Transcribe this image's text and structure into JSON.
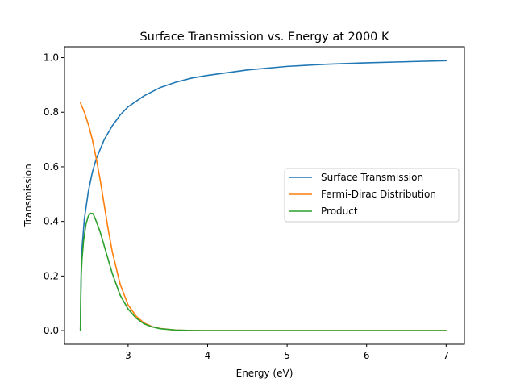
{
  "chart_data": {
    "type": "line",
    "title": "Surface Transmission vs. Energy at 2000 K",
    "xlabel": "Energy (eV)",
    "ylabel": "Transmission",
    "xlim": [
      2.2,
      7.23
    ],
    "ylim": [
      -0.05,
      1.04
    ],
    "xticks": [
      3,
      4,
      5,
      6,
      7
    ],
    "xtick_labels": [
      "3",
      "4",
      "5",
      "6",
      "7"
    ],
    "yticks": [
      0.0,
      0.2,
      0.4,
      0.6,
      0.8,
      1.0
    ],
    "ytick_labels": [
      "0.0",
      "0.2",
      "0.4",
      "0.6",
      "0.8",
      "1.0"
    ],
    "grid": false,
    "legend_position": "center-right",
    "series": [
      {
        "name": "Surface Transmission",
        "color": "#1f77b4",
        "x": [
          2.4,
          2.41,
          2.42,
          2.45,
          2.5,
          2.55,
          2.6,
          2.7,
          2.8,
          2.9,
          3.0,
          3.2,
          3.4,
          3.6,
          3.8,
          4.0,
          4.5,
          5.0,
          5.5,
          6.0,
          6.5,
          7.0
        ],
        "y": [
          0.0,
          0.22,
          0.3,
          0.41,
          0.51,
          0.58,
          0.63,
          0.7,
          0.75,
          0.79,
          0.82,
          0.86,
          0.89,
          0.91,
          0.925,
          0.935,
          0.955,
          0.968,
          0.976,
          0.981,
          0.985,
          0.989
        ]
      },
      {
        "name": "Fermi-Dirac Distribution",
        "color": "#ff7f0e",
        "x": [
          2.4,
          2.45,
          2.5,
          2.55,
          2.6,
          2.65,
          2.7,
          2.75,
          2.8,
          2.9,
          3.0,
          3.1,
          3.2,
          3.3,
          3.4,
          3.6,
          3.8,
          4.0,
          5.0,
          6.0,
          7.0
        ],
        "y": [
          0.835,
          0.8,
          0.755,
          0.7,
          0.63,
          0.55,
          0.46,
          0.37,
          0.29,
          0.17,
          0.094,
          0.053,
          0.028,
          0.015,
          0.008,
          0.002,
          0.0006,
          0.0001,
          0.0,
          0.0,
          0.0
        ]
      },
      {
        "name": "Product",
        "color": "#2ca02c",
        "x": [
          2.4,
          2.405,
          2.41,
          2.42,
          2.44,
          2.47,
          2.5,
          2.53,
          2.56,
          2.6,
          2.65,
          2.7,
          2.75,
          2.8,
          2.9,
          3.0,
          3.1,
          3.2,
          3.3,
          3.4,
          3.6,
          3.8,
          4.0,
          5.0,
          6.0,
          7.0
        ],
        "y": [
          0.0,
          0.14,
          0.2,
          0.26,
          0.33,
          0.39,
          0.42,
          0.43,
          0.428,
          0.4,
          0.36,
          0.31,
          0.26,
          0.21,
          0.13,
          0.079,
          0.046,
          0.025,
          0.014,
          0.007,
          0.002,
          0.0005,
          0.0001,
          0.0,
          0.0,
          0.0
        ]
      }
    ]
  }
}
